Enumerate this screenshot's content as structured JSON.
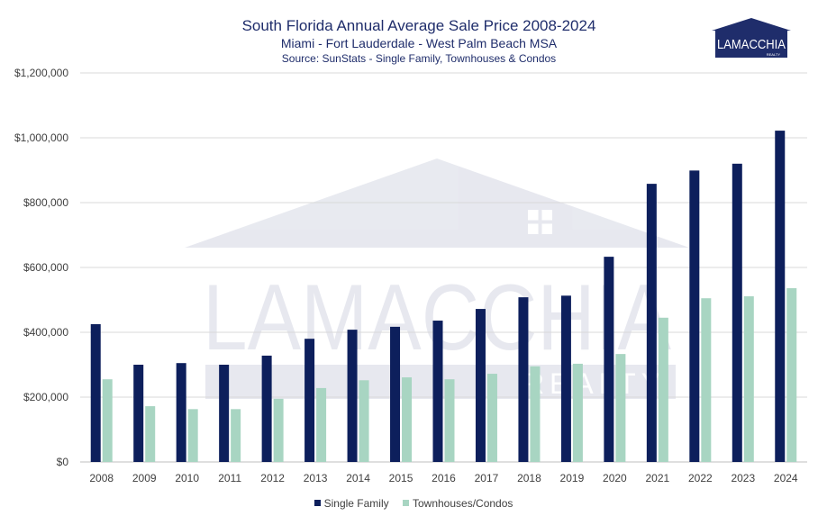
{
  "header": {
    "title": "South Florida Annual Average Sale Price 2008-2024",
    "subtitle": "Miami - Fort Lauderdale - West Palm Beach MSA",
    "source": "Source: SunStats - Single Family, Townhouses & Condos"
  },
  "logo": {
    "text": "LAMACCHIA",
    "subtext": "REALTY",
    "icon": "house-roof-icon"
  },
  "watermark": {
    "text": "LAMACCHIA",
    "subtext": "REALTY"
  },
  "colors": {
    "single_family": "#0d1f5c",
    "townhouses_condos": "#a8d5c2",
    "grid": "#d9d9d9",
    "text": "#404040",
    "title": "#1f2d6b"
  },
  "chart_data": {
    "type": "bar",
    "title": "South Florida Annual Average Sale Price 2008-2024",
    "categories": [
      "2008",
      "2009",
      "2010",
      "2011",
      "2012",
      "2013",
      "2014",
      "2015",
      "2016",
      "2017",
      "2018",
      "2019",
      "2020",
      "2021",
      "2022",
      "2023",
      "2024"
    ],
    "series": [
      {
        "name": "Single Family",
        "values": [
          425000,
          300000,
          305000,
          300000,
          328000,
          380000,
          408000,
          417000,
          436000,
          472000,
          508000,
          513000,
          633000,
          858000,
          899000,
          920000,
          1022000
        ]
      },
      {
        "name": "Townhouses/Condos",
        "values": [
          255000,
          172000,
          163000,
          163000,
          195000,
          228000,
          252000,
          261000,
          255000,
          272000,
          295000,
          303000,
          333000,
          445000,
          505000,
          511000,
          536000
        ]
      }
    ],
    "ylim": [
      0,
      1200000
    ],
    "yticks": [
      0,
      200000,
      400000,
      600000,
      800000,
      1000000,
      1200000
    ],
    "ytick_labels": [
      "$0",
      "$200,000",
      "$400,000",
      "$600,000",
      "$800,000",
      "$1,000,000",
      "$1,200,000"
    ],
    "grid": true,
    "legend": "bottom"
  }
}
